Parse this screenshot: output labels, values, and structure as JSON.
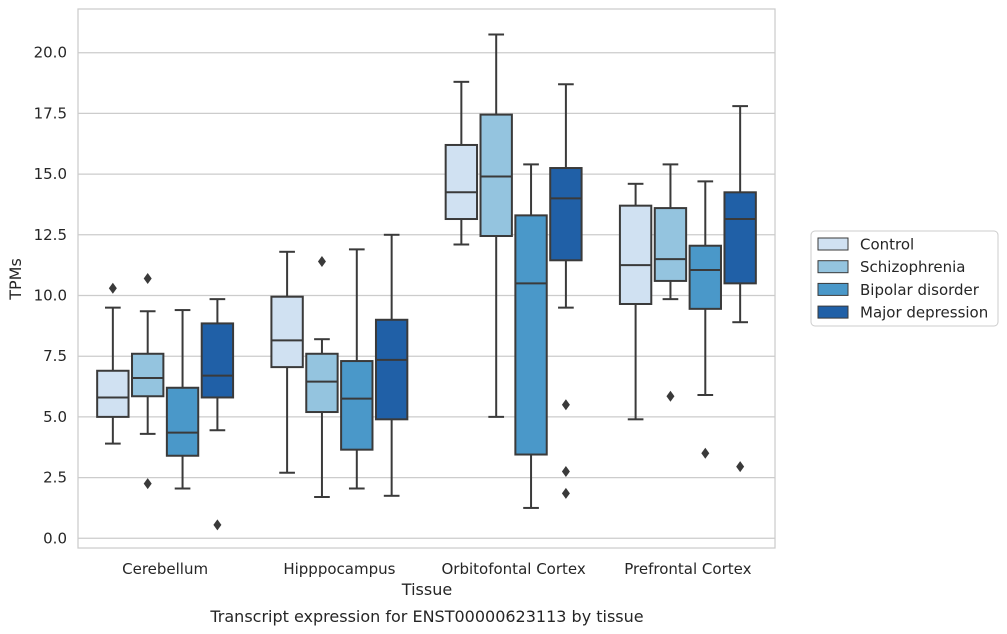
{
  "chart_data": {
    "type": "box",
    "title": "",
    "caption": "Transcript expression for ENST00000623113 by tissue",
    "xlabel": "Tissue",
    "ylabel": "TPMs",
    "ylim": [
      -0.4,
      21.8
    ],
    "yticks": [
      0.0,
      2.5,
      5.0,
      7.5,
      10.0,
      12.5,
      15.0,
      17.5,
      20.0
    ],
    "ytick_labels": [
      "0.0",
      "2.5",
      "5.0",
      "7.5",
      "10.0",
      "12.5",
      "15.0",
      "17.5",
      "20.0"
    ],
    "categories": [
      "Cerebellum",
      "Hipppocampus",
      "Orbitofontal Cortex",
      "Prefrontal Cortex"
    ],
    "grid": "horizontal",
    "legend_position": "right",
    "series": [
      {
        "name": "Control",
        "color": "#d0e1f2",
        "boxes": [
          {
            "whislo": 3.9,
            "q1": 5.0,
            "med": 5.8,
            "q3": 6.9,
            "whishi": 9.5,
            "fliers": [
              10.3
            ]
          },
          {
            "whislo": 2.7,
            "q1": 7.05,
            "med": 8.15,
            "q3": 9.95,
            "whishi": 11.8,
            "fliers": []
          },
          {
            "whislo": 12.1,
            "q1": 13.15,
            "med": 14.25,
            "q3": 16.2,
            "whishi": 18.8,
            "fliers": []
          },
          {
            "whislo": 4.9,
            "q1": 9.65,
            "med": 11.25,
            "q3": 13.7,
            "whishi": 14.6,
            "fliers": []
          }
        ]
      },
      {
        "name": "Schizophrenia",
        "color": "#94c4df",
        "boxes": [
          {
            "whislo": 4.3,
            "q1": 5.85,
            "med": 6.6,
            "q3": 7.6,
            "whishi": 9.35,
            "fliers": [
              10.7,
              2.25
            ]
          },
          {
            "whislo": 1.7,
            "q1": 5.2,
            "med": 6.45,
            "q3": 7.6,
            "whishi": 8.2,
            "fliers": [
              11.4
            ]
          },
          {
            "whislo": 5.0,
            "q1": 12.45,
            "med": 14.9,
            "q3": 17.45,
            "whishi": 20.75,
            "fliers": []
          },
          {
            "whislo": 9.85,
            "q1": 10.6,
            "med": 11.5,
            "q3": 13.6,
            "whishi": 15.4,
            "fliers": [
              5.85
            ]
          }
        ]
      },
      {
        "name": "Bipolar disorder",
        "color": "#4a98c9",
        "boxes": [
          {
            "whislo": 2.05,
            "q1": 3.4,
            "med": 4.35,
            "q3": 6.2,
            "whishi": 9.4,
            "fliers": []
          },
          {
            "whislo": 2.05,
            "q1": 3.65,
            "med": 5.75,
            "q3": 7.3,
            "whishi": 11.9,
            "fliers": []
          },
          {
            "whislo": 1.25,
            "q1": 3.45,
            "med": 10.5,
            "q3": 13.3,
            "whishi": 15.4,
            "fliers": []
          },
          {
            "whislo": 5.9,
            "q1": 9.45,
            "med": 11.05,
            "q3": 12.05,
            "whishi": 14.7,
            "fliers": [
              3.5
            ]
          }
        ]
      },
      {
        "name": "Major depression",
        "color": "#2060a7",
        "boxes": [
          {
            "whislo": 4.45,
            "q1": 5.8,
            "med": 6.7,
            "q3": 8.85,
            "whishi": 9.85,
            "fliers": [
              0.55
            ]
          },
          {
            "whislo": 1.75,
            "q1": 4.9,
            "med": 7.35,
            "q3": 9.0,
            "whishi": 12.5,
            "fliers": []
          },
          {
            "whislo": 9.5,
            "q1": 11.45,
            "med": 14.0,
            "q3": 15.25,
            "whishi": 18.7,
            "fliers": [
              5.5,
              2.75,
              1.85
            ]
          },
          {
            "whislo": 8.9,
            "q1": 10.5,
            "med": 13.15,
            "q3": 14.25,
            "whishi": 17.8,
            "fliers": [
              2.95
            ]
          }
        ]
      }
    ]
  }
}
